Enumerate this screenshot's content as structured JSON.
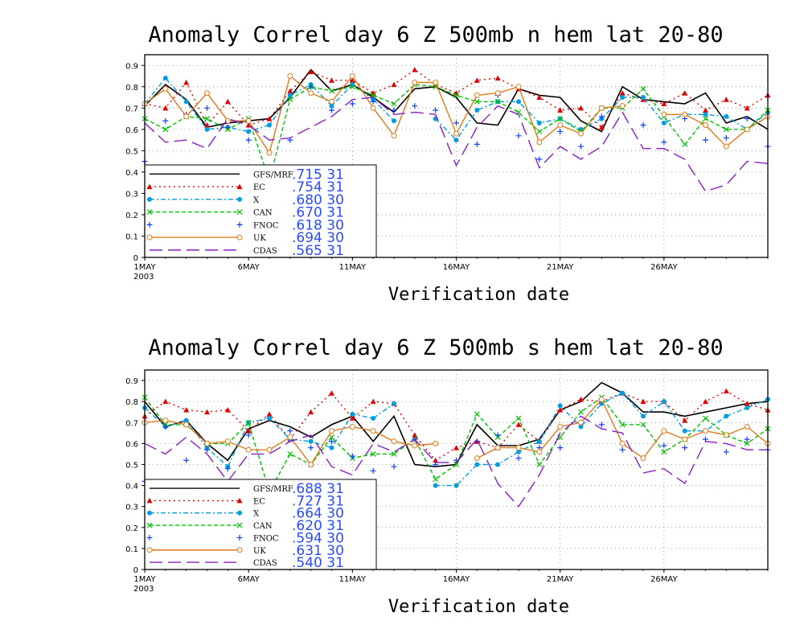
{
  "chart_data": [
    {
      "type": "line",
      "title": "Anomaly Correl  day 6  Z 500mb  n hem  lat 20-80",
      "xlabel": "Verification date",
      "ylabel": "",
      "year_label": "2003",
      "x": [
        1,
        2,
        3,
        4,
        5,
        6,
        7,
        8,
        9,
        10,
        11,
        12,
        13,
        14,
        15,
        16,
        17,
        18,
        19,
        20,
        21,
        22,
        23,
        24,
        25,
        26,
        27,
        28,
        29,
        30,
        31
      ],
      "xlim": [
        1,
        31
      ],
      "ylim": [
        0,
        0.95
      ],
      "xtick_values": [
        1,
        6,
        11,
        16,
        21,
        26
      ],
      "xtick_labels": [
        "1MAY",
        "6MAY",
        "11MAY",
        "16MAY",
        "21MAY",
        "26MAY"
      ],
      "ytick_values": [
        0,
        0.1,
        0.2,
        0.3,
        0.4,
        0.5,
        0.6,
        0.7,
        0.8,
        0.9
      ],
      "ytick_labels": [
        "0",
        "0.1",
        "0.2",
        "0.3",
        "0.4",
        "0.5",
        "0.6",
        "0.7",
        "0.8",
        "0.9"
      ],
      "grid": true,
      "legend_position": "bottom-left",
      "series": [
        {
          "name": "GFS/MRF",
          "stat": ".715  31",
          "color": "#000000",
          "style": "solid",
          "marker": "none",
          "values": [
            0.71,
            0.81,
            0.74,
            0.61,
            0.63,
            0.64,
            0.65,
            0.75,
            0.88,
            0.78,
            0.81,
            0.75,
            0.68,
            0.79,
            0.8,
            0.75,
            0.63,
            0.62,
            0.79,
            0.76,
            0.75,
            0.64,
            0.59,
            0.8,
            0.74,
            0.73,
            0.72,
            0.77,
            0.63,
            0.66,
            0.6
          ]
        },
        {
          "name": "EC",
          "stat": ".754  31",
          "color": "#e00000",
          "style": "dotted",
          "marker": "triangle",
          "values": [
            0.72,
            0.7,
            0.82,
            0.62,
            0.73,
            0.62,
            0.65,
            0.78,
            0.87,
            0.83,
            0.83,
            0.77,
            0.81,
            0.88,
            0.81,
            0.77,
            0.83,
            0.84,
            0.79,
            0.75,
            0.69,
            0.7,
            0.61,
            0.77,
            0.74,
            0.72,
            0.77,
            0.69,
            0.74,
            0.7,
            0.76
          ]
        },
        {
          "name": "X",
          "stat": ".680  30",
          "color": "#009ee0",
          "style": "dashdot",
          "marker": "circle",
          "values": [
            0.72,
            0.84,
            0.73,
            0.6,
            0.61,
            0.59,
            0.62,
            0.76,
            0.81,
            0.71,
            0.81,
            0.74,
            0.64,
            null,
            0.65,
            0.55,
            0.69,
            0.73,
            0.73,
            0.63,
            0.65,
            0.6,
            0.65,
            0.75,
            0.75,
            0.63,
            0.67,
            0.67,
            0.66,
            0.6,
            0.68
          ]
        },
        {
          "name": "CAN",
          "stat": ".670  31",
          "color": "#00c000",
          "style": "dashed",
          "marker": "x",
          "values": [
            0.65,
            0.6,
            0.66,
            0.65,
            0.6,
            0.65,
            0.36,
            0.74,
            0.8,
            0.78,
            0.8,
            0.76,
            0.72,
            0.81,
            0.8,
            0.76,
            0.73,
            0.73,
            0.68,
            0.59,
            0.65,
            0.59,
            0.7,
            0.7,
            0.79,
            0.66,
            0.53,
            0.65,
            0.6,
            0.6,
            0.69
          ]
        },
        {
          "name": "FNOC",
          "stat": ".618  30",
          "color": "#1040ff",
          "style": "none",
          "marker": "plus",
          "values": [
            0.45,
            0.64,
            0.67,
            0.7,
            0.61,
            0.55,
            null,
            0.55,
            0.8,
            0.69,
            0.72,
            0.73,
            0.69,
            0.71,
            0.69,
            0.63,
            0.53,
            0.76,
            0.57,
            0.46,
            0.59,
            0.52,
            0.66,
            0.71,
            0.62,
            0.54,
            0.65,
            0.55,
            0.56,
            0.65,
            0.52
          ]
        },
        {
          "name": "UK",
          "stat": ".694  30",
          "color": "#e07a1a",
          "style": "solid",
          "marker": "circle-open",
          "values": [
            0.72,
            0.79,
            0.66,
            0.77,
            0.64,
            0.64,
            0.49,
            0.85,
            0.77,
            0.73,
            0.85,
            0.7,
            0.57,
            0.82,
            0.82,
            0.58,
            0.76,
            0.77,
            0.8,
            0.54,
            0.62,
            0.58,
            0.7,
            0.71,
            null,
            0.67,
            0.67,
            0.62,
            0.52,
            0.6,
            0.66
          ]
        },
        {
          "name": "CDAS",
          "stat": ".565  31",
          "color": "#8a1ec8",
          "style": "longdash",
          "marker": "none",
          "values": [
            0.63,
            0.54,
            0.55,
            0.51,
            0.65,
            0.62,
            0.55,
            0.56,
            0.61,
            0.66,
            0.74,
            0.75,
            0.67,
            0.68,
            0.67,
            0.43,
            0.61,
            0.71,
            0.67,
            0.42,
            0.52,
            0.46,
            0.52,
            0.68,
            0.51,
            0.51,
            0.46,
            0.31,
            0.34,
            0.45,
            0.44
          ]
        }
      ]
    },
    {
      "type": "line",
      "title": "Anomaly Correl  day 6  Z 500mb  s hem  lat 20-80",
      "xlabel": "Verification date",
      "ylabel": "",
      "year_label": "2003",
      "x": [
        1,
        2,
        3,
        4,
        5,
        6,
        7,
        8,
        9,
        10,
        11,
        12,
        13,
        14,
        15,
        16,
        17,
        18,
        19,
        20,
        21,
        22,
        23,
        24,
        25,
        26,
        27,
        28,
        29,
        30,
        31
      ],
      "xlim": [
        1,
        31
      ],
      "ylim": [
        0,
        0.95
      ],
      "xtick_values": [
        1,
        6,
        11,
        16,
        21,
        26
      ],
      "xtick_labels": [
        "1MAY",
        "6MAY",
        "11MAY",
        "16MAY",
        "21MAY",
        "26MAY"
      ],
      "ytick_values": [
        0,
        0.1,
        0.2,
        0.3,
        0.4,
        0.5,
        0.6,
        0.7,
        0.8,
        0.9
      ],
      "ytick_labels": [
        "0",
        "0.1",
        "0.2",
        "0.3",
        "0.4",
        "0.5",
        "0.6",
        "0.7",
        "0.8",
        "0.9"
      ],
      "grid": true,
      "legend_position": "bottom-left",
      "series": [
        {
          "name": "GFS/MRF",
          "stat": ".688  31",
          "color": "#000000",
          "style": "solid",
          "marker": "none",
          "values": [
            0.8,
            0.68,
            0.71,
            0.6,
            0.52,
            0.67,
            0.71,
            0.68,
            0.63,
            0.69,
            0.73,
            0.61,
            0.73,
            0.5,
            0.49,
            0.5,
            0.69,
            0.59,
            0.59,
            0.62,
            0.76,
            0.8,
            0.89,
            0.84,
            0.75,
            0.75,
            0.73,
            0.75,
            0.77,
            0.79,
            0.8
          ]
        },
        {
          "name": "EC",
          "stat": ".727  31",
          "color": "#e00000",
          "style": "dotted",
          "marker": "triangle",
          "values": [
            0.73,
            0.8,
            0.76,
            0.75,
            0.76,
            0.66,
            0.74,
            0.62,
            0.75,
            0.84,
            0.72,
            0.8,
            0.79,
            0.64,
            0.52,
            0.58,
            0.61,
            0.58,
            0.69,
            0.61,
            0.76,
            0.81,
            0.8,
            0.84,
            0.8,
            0.8,
            0.71,
            0.8,
            0.85,
            0.79,
            0.76
          ]
        },
        {
          "name": "X",
          "stat": ".664  30",
          "color": "#009ee0",
          "style": "dashdot",
          "marker": "circle",
          "values": [
            0.77,
            0.68,
            0.71,
            0.58,
            0.49,
            0.7,
            0.72,
            0.62,
            0.61,
            0.58,
            0.74,
            0.72,
            0.79,
            null,
            0.4,
            0.4,
            0.5,
            0.5,
            0.56,
            0.61,
            0.78,
            0.68,
            0.79,
            0.84,
            0.73,
            0.8,
            0.66,
            0.66,
            0.73,
            0.77,
            0.81
          ]
        },
        {
          "name": "CAN",
          "stat": ".620  31",
          "color": "#00c000",
          "style": "dashed",
          "marker": "x",
          "values": [
            0.82,
            0.69,
            0.69,
            0.6,
            0.6,
            0.7,
            0.37,
            0.55,
            0.5,
            0.63,
            0.53,
            0.55,
            0.55,
            0.62,
            0.43,
            0.5,
            0.74,
            0.63,
            0.72,
            0.5,
            0.63,
            0.75,
            0.82,
            0.69,
            0.69,
            0.56,
            0.62,
            0.72,
            0.64,
            0.6,
            0.67
          ]
        },
        {
          "name": "FNOC",
          "stat": ".594  30",
          "color": "#1040ff",
          "style": "none",
          "marker": "plus",
          "values": [
            0.42,
            0.68,
            0.52,
            0.57,
            0.48,
            0.64,
            null,
            0.66,
            0.58,
            0.61,
            0.54,
            0.47,
            0.49,
            0.62,
            0.5,
            0.52,
            0.61,
            0.64,
            0.53,
            0.58,
            0.58,
            0.7,
            0.69,
            0.57,
            0.53,
            0.59,
            0.58,
            0.62,
            0.56,
            0.62,
            0.57
          ]
        },
        {
          "name": "UK",
          "stat": ".631  30",
          "color": "#e07a1a",
          "style": "solid",
          "marker": "circle-open",
          "values": [
            0.7,
            0.71,
            0.69,
            0.6,
            0.61,
            0.57,
            0.57,
            0.63,
            0.5,
            0.66,
            0.68,
            0.66,
            0.61,
            0.59,
            0.6,
            null,
            0.53,
            0.58,
            0.58,
            0.56,
            0.68,
            0.7,
            0.81,
            0.6,
            0.53,
            0.66,
            0.62,
            0.66,
            0.64,
            0.68,
            0.6
          ]
        },
        {
          "name": "CDAS",
          "stat": ".540  31",
          "color": "#8a1ec8",
          "style": "longdash",
          "marker": "none",
          "values": [
            0.6,
            0.55,
            0.63,
            0.55,
            0.42,
            0.55,
            0.55,
            0.61,
            0.64,
            0.49,
            0.45,
            0.6,
            0.56,
            0.62,
            0.51,
            0.51,
            0.62,
            0.41,
            0.3,
            0.45,
            0.65,
            0.73,
            0.67,
            0.65,
            0.46,
            0.48,
            0.41,
            0.61,
            0.6,
            0.57,
            0.57
          ]
        }
      ]
    }
  ]
}
